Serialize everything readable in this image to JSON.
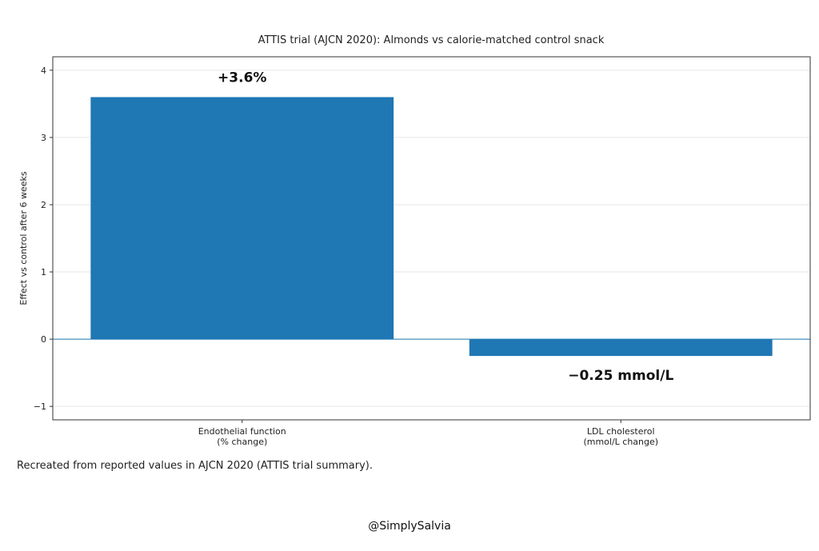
{
  "chart_data": {
    "type": "bar",
    "title": "ATTIS trial (AJCN 2020): Almonds vs calorie-matched control snack",
    "xlabel": "",
    "ylabel": "Effect vs control after 6 weeks",
    "categories": [
      [
        "Endothelial function",
        "(% change)"
      ],
      [
        "LDL cholesterol",
        "(mmol/L change)"
      ]
    ],
    "values": [
      3.6,
      -0.25
    ],
    "data_labels": [
      "+3.6%",
      "−0.25 mmol/L"
    ],
    "ylim": [
      -1.2,
      4.2
    ],
    "yticks": [
      -1,
      0,
      1,
      2,
      3,
      4
    ],
    "ytick_labels": [
      "−1",
      "0",
      "1",
      "2",
      "3",
      "4"
    ],
    "grid": true,
    "bar_color": "#1f77b4",
    "zero_line_color": "#1f77b4"
  },
  "footnote": "Recreated from reported values in AJCN 2020 (ATTIS trial summary).",
  "credit": "@SimplySalvia"
}
